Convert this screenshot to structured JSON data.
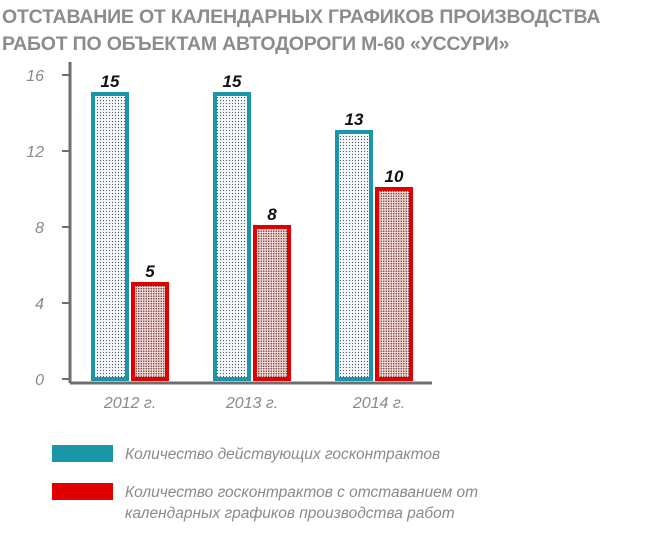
{
  "chart_data": {
    "type": "bar",
    "title": "ОТСТАВАНИЕ ОТ КАЛЕНДАРНЫХ ГРАФИКОВ ПРОИЗВОДСТВА РАБОТ ПО ОБЪЕКТАМ АВТОДОРОГИ М-60 «УССУРИ»",
    "title_lines": [
      "ОТСТАВАНИЕ ОТ КАЛЕНДАРНЫХ ГРАФИКОВ ПРОИЗВОДСТВА",
      "РАБОТ ПО ОБЪЕКТАМ АВТОДОРОГИ М-60 «УССУРИ»"
    ],
    "categories": [
      "2012 г.",
      "2013 г.",
      "2014 г."
    ],
    "series": [
      {
        "name": "Количество действующих госконтрактов",
        "values": [
          15,
          15,
          13
        ],
        "color": "#1a96a8"
      },
      {
        "name": "Количество госконтрактов с отставанием от календарных графиков производства работ",
        "values": [
          5,
          8,
          10
        ],
        "color": "#e00000"
      }
    ],
    "yticks": [
      "0",
      "4",
      "8",
      "12",
      "16"
    ],
    "ylim": [
      0,
      16
    ],
    "xlabel": "",
    "ylabel": "",
    "legend_position": "bottom"
  }
}
